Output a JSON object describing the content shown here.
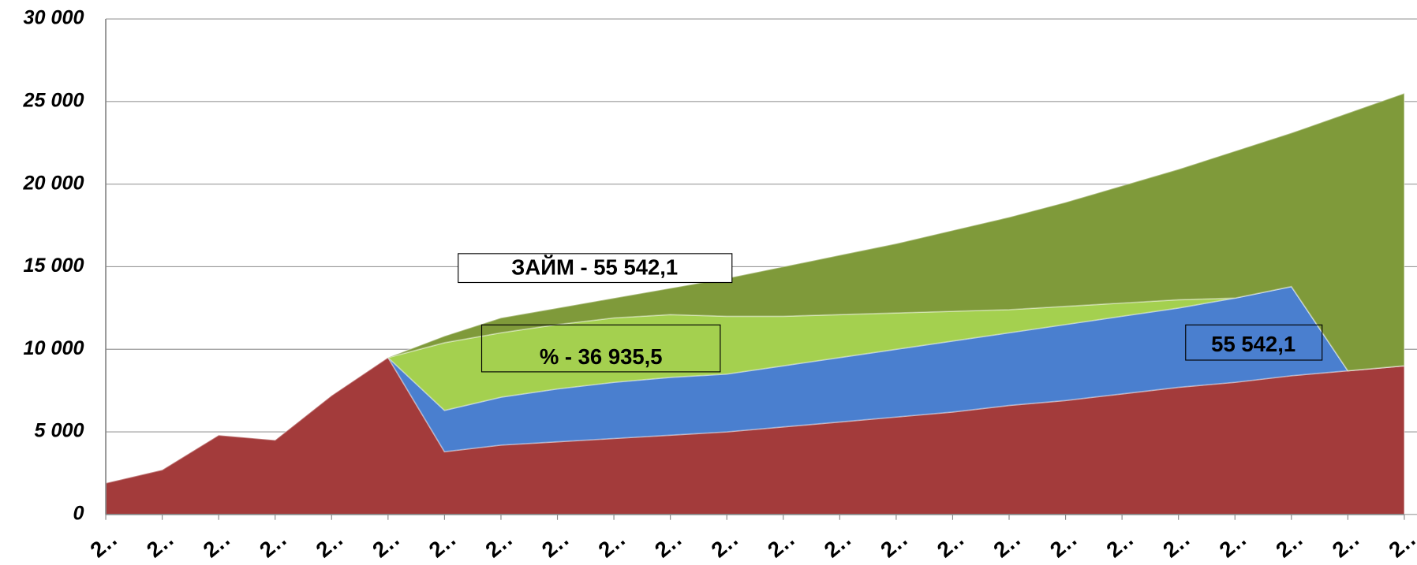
{
  "chart_data": {
    "type": "stacked_area",
    "categories": [
      "2‥",
      "2‥",
      "2‥",
      "2‥",
      "2‥",
      "2‥",
      "2‥",
      "2‥",
      "2‥",
      "2‥",
      "2‥",
      "2‥",
      "2‥",
      "2‥",
      "2‥",
      "2‥",
      "2‥",
      "2‥",
      "2‥",
      "2‥",
      "2‥",
      "2‥",
      "2‥",
      "2‥"
    ],
    "series": [
      {
        "color": "#a33b3b",
        "values": [
          1900,
          2700,
          4800,
          4500,
          7200,
          9500,
          3800,
          4200,
          4400,
          4600,
          4800,
          5000,
          5300,
          5600,
          5900,
          6200,
          6600,
          6900,
          7300,
          7700,
          8000,
          8400,
          8700,
          9000
        ]
      },
      {
        "color": "#4a7fcf",
        "values": [
          null,
          null,
          null,
          null,
          null,
          0,
          2500,
          2900,
          3200,
          3400,
          3500,
          3500,
          3700,
          3900,
          4100,
          4300,
          4400,
          4600,
          4700,
          4800,
          5100,
          5400,
          0,
          0
        ]
      },
      {
        "color": "#a4d04f",
        "values": [
          null,
          null,
          null,
          null,
          null,
          0,
          4100,
          3900,
          3900,
          3900,
          3800,
          3500,
          3000,
          2600,
          2200,
          1800,
          1400,
          1100,
          800,
          500,
          0,
          0,
          0,
          0
        ]
      },
      {
        "color": "#7f9a3a",
        "values": [
          null,
          null,
          null,
          null,
          null,
          0,
          400,
          900,
          1000,
          1200,
          1600,
          2300,
          3000,
          3600,
          4200,
          4900,
          5600,
          6300,
          7100,
          7900,
          8900,
          9300,
          15600,
          16500
        ]
      }
    ],
    "ylim": [
      0,
      30000
    ],
    "yticks": [
      0,
      {
        "value": 5000,
        "label": "5 000"
      },
      {
        "value": 10000,
        "label": "10 000"
      },
      {
        "value": 15000,
        "label": "15 000"
      },
      {
        "value": 20000,
        "label": "20 000"
      },
      {
        "value": 25000,
        "label": "25 000"
      },
      {
        "value": 30000,
        "label": "30 000"
      }
    ],
    "grid": true,
    "annotations": [
      "ЗАЙМ  -  55 542,1",
      "%  -  36 935,5",
      "55 542,1"
    ]
  }
}
